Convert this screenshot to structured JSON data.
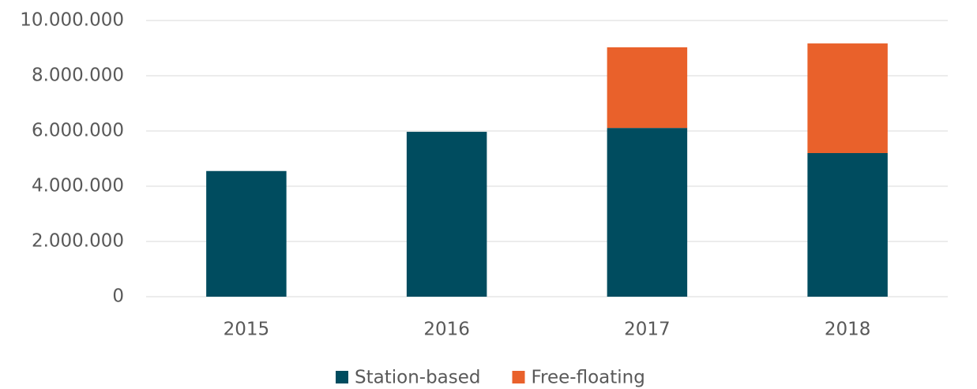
{
  "chart_data": {
    "type": "bar",
    "stacked": true,
    "categories": [
      "2015",
      "2016",
      "2017",
      "2018"
    ],
    "series": [
      {
        "name": "Station-based",
        "color": "#004c5f",
        "values": [
          4550000,
          5970000,
          6110000,
          5200000
        ]
      },
      {
        "name": "Free-floating",
        "color": "#e9612b",
        "values": [
          null,
          null,
          2920000,
          3970000
        ]
      }
    ],
    "ylim": [
      0,
      10000000
    ],
    "yticks": [
      0,
      {
        "value": 2000000,
        "label": "2.000.000"
      },
      {
        "value": 4000000,
        "label": "4.000.000"
      },
      {
        "value": 6000000,
        "label": "6.000.000"
      },
      {
        "value": 8000000,
        "label": "8.000.000"
      },
      {
        "value": 10000000,
        "label": "10.000.000"
      }
    ],
    "grid": true,
    "legend": "bottom"
  }
}
